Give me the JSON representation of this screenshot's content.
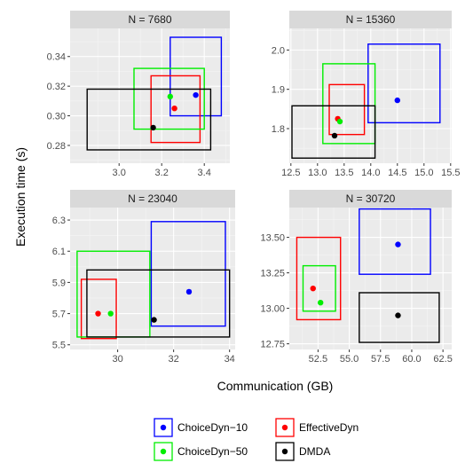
{
  "chart_data": {
    "type": "scatter",
    "description_note": "",
    "xlabel": "Communication (GB)",
    "ylabel": "Execution time (s)",
    "grid": true,
    "legend_position": "bottom",
    "series": [
      {
        "name": "ChoiceDyn−10",
        "color": "#0000ff"
      },
      {
        "name": "EffectiveDyn",
        "color": "#ff0000"
      },
      {
        "name": "ChoiceDyn−50",
        "color": "#00ee00"
      },
      {
        "name": "DMDA",
        "color": "#000000"
      }
    ],
    "panels": [
      {
        "title": "N = 7680",
        "xlim": [
          2.77,
          3.52
        ],
        "ylim": [
          0.268,
          0.359
        ],
        "xticks": [
          3.0,
          3.2,
          3.4
        ],
        "xtick_labels": [
          "3.0",
          "3.2",
          "3.4"
        ],
        "yticks": [
          0.28,
          0.3,
          0.32,
          0.34
        ],
        "ytick_labels": [
          "0.28",
          "0.30",
          "0.32",
          "0.34"
        ],
        "points": [
          {
            "series": "ChoiceDyn−10",
            "x": 3.36,
            "y": 0.314,
            "xmin": 3.24,
            "xmax": 3.48,
            "ymin": 0.3,
            "ymax": 0.353
          },
          {
            "series": "EffectiveDyn",
            "x": 3.26,
            "y": 0.305,
            "xmin": 3.15,
            "xmax": 3.38,
            "ymin": 0.282,
            "ymax": 0.327
          },
          {
            "series": "ChoiceDyn−50",
            "x": 3.24,
            "y": 0.313,
            "xmin": 3.07,
            "xmax": 3.4,
            "ymin": 0.291,
            "ymax": 0.332
          },
          {
            "series": "DMDA",
            "x": 3.16,
            "y": 0.292,
            "xmin": 2.85,
            "xmax": 3.43,
            "ymin": 0.277,
            "ymax": 0.318
          }
        ]
      },
      {
        "title": "N = 15360",
        "xlim": [
          12.47,
          15.52
        ],
        "ylim": [
          1.712,
          2.055
        ],
        "xticks": [
          12.5,
          13.0,
          13.5,
          14.0,
          14.5,
          15.0,
          15.5
        ],
        "xtick_labels": [
          "12.5",
          "13.0",
          "13.5",
          "14.0",
          "14.5",
          "15.0",
          "15.5"
        ],
        "yticks": [
          1.8,
          1.9,
          2.0
        ],
        "ytick_labels": [
          "1.8",
          "1.9",
          "2.0"
        ],
        "points": [
          {
            "series": "ChoiceDyn−10",
            "x": 14.5,
            "y": 1.872,
            "xmin": 13.95,
            "xmax": 15.3,
            "ymin": 1.815,
            "ymax": 2.015
          },
          {
            "series": "EffectiveDyn",
            "x": 13.38,
            "y": 1.825,
            "xmin": 13.22,
            "xmax": 13.88,
            "ymin": 1.785,
            "ymax": 1.912
          },
          {
            "series": "ChoiceDyn−50",
            "x": 13.42,
            "y": 1.818,
            "xmin": 13.1,
            "xmax": 14.08,
            "ymin": 1.762,
            "ymax": 1.965
          },
          {
            "series": "DMDA",
            "x": 13.32,
            "y": 1.782,
            "xmin": 12.52,
            "xmax": 14.08,
            "ymin": 1.725,
            "ymax": 1.858
          }
        ]
      },
      {
        "title": "N = 23040",
        "xlim": [
          28.3,
          34.2
        ],
        "ylim": [
          5.47,
          6.38
        ],
        "xticks": [
          30,
          32,
          34
        ],
        "xtick_labels": [
          "30",
          "32",
          "34"
        ],
        "yticks": [
          5.5,
          5.7,
          5.9,
          6.1,
          6.3
        ],
        "ytick_labels": [
          "5.5",
          "5.7",
          "5.9",
          "6.1",
          "6.3"
        ],
        "points": [
          {
            "series": "ChoiceDyn−10",
            "x": 32.55,
            "y": 5.84,
            "xmin": 31.2,
            "xmax": 33.85,
            "ymin": 5.62,
            "ymax": 6.29
          },
          {
            "series": "EffectiveDyn",
            "x": 29.3,
            "y": 5.7,
            "xmin": 28.7,
            "xmax": 29.95,
            "ymin": 5.54,
            "ymax": 5.92
          },
          {
            "series": "ChoiceDyn−50",
            "x": 29.75,
            "y": 5.7,
            "xmin": 28.55,
            "xmax": 31.15,
            "ymin": 5.55,
            "ymax": 6.1
          },
          {
            "series": "DMDA",
            "x": 31.3,
            "y": 5.66,
            "xmin": 28.9,
            "xmax": 34.0,
            "ymin": 5.55,
            "ymax": 5.98
          }
        ]
      },
      {
        "title": "N = 30720",
        "xlim": [
          50.2,
          63.2
        ],
        "ylim": [
          12.71,
          13.71
        ],
        "xticks": [
          52.5,
          55.0,
          57.5,
          60.0,
          62.5
        ],
        "xtick_labels": [
          "52.5",
          "55.0",
          "57.5",
          "60.0",
          "62.5"
        ],
        "yticks": [
          12.75,
          13.0,
          13.25,
          13.5
        ],
        "ytick_labels": [
          "12.75",
          "13.00",
          "13.25",
          "13.50"
        ],
        "points": [
          {
            "series": "ChoiceDyn−10",
            "x": 58.9,
            "y": 13.45,
            "xmin": 55.8,
            "xmax": 61.5,
            "ymin": 13.24,
            "ymax": 13.7
          },
          {
            "series": "EffectiveDyn",
            "x": 52.1,
            "y": 13.14,
            "xmin": 50.8,
            "xmax": 54.3,
            "ymin": 12.92,
            "ymax": 13.5
          },
          {
            "series": "ChoiceDyn−50",
            "x": 52.7,
            "y": 13.04,
            "xmin": 51.3,
            "xmax": 53.9,
            "ymin": 12.98,
            "ymax": 13.3
          },
          {
            "series": "DMDA",
            "x": 58.9,
            "y": 12.95,
            "xmin": 55.8,
            "xmax": 62.2,
            "ymin": 12.76,
            "ymax": 13.11
          }
        ]
      }
    ]
  }
}
